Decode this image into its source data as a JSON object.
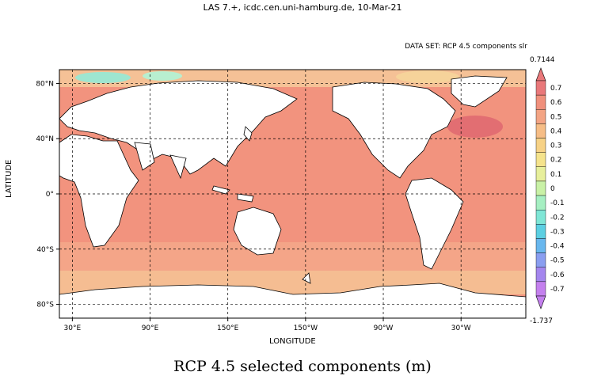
{
  "header": "LAS 7.+, icdc.cen.uni-hamburg.de, 10-Mar-21",
  "dataset_label": "DATA SET: RCP 4.5 components slr",
  "title": "RCP 4.5 selected components (m)",
  "axes": {
    "xlabel": "LONGITUDE",
    "ylabel": "LATITUDE",
    "xticks": [
      "30°E",
      "90°E",
      "150°E",
      "150°W",
      "90°W",
      "30°W"
    ],
    "yticks": [
      "80°N",
      "40°N",
      "0°",
      "40°S",
      "80°S"
    ]
  },
  "colorbar": {
    "max_label": "0.7144",
    "min_label": "-1.737",
    "labels": [
      "0.7",
      "0.6",
      "0.5",
      "0.4",
      "0.3",
      "0.2",
      "0.1",
      "0",
      "-0.1",
      "-0.2",
      "-0.3",
      "-0.4",
      "-0.5",
      "-0.6",
      "-0.7"
    ],
    "colors": [
      "#e9787a",
      "#f0907c",
      "#f3a484",
      "#f6bd86",
      "#f7d286",
      "#f5e38c",
      "#e7ef9b",
      "#c9f1a6",
      "#a6efc2",
      "#7fe6d6",
      "#5ccfe2",
      "#69b7ee",
      "#8a9ef0",
      "#a486ee",
      "#c480ee"
    ]
  },
  "map": {
    "ocean_color": "#f2937e",
    "land_color": "#ffffff",
    "projection": "equirectangular, 20°E to 20°E"
  }
}
